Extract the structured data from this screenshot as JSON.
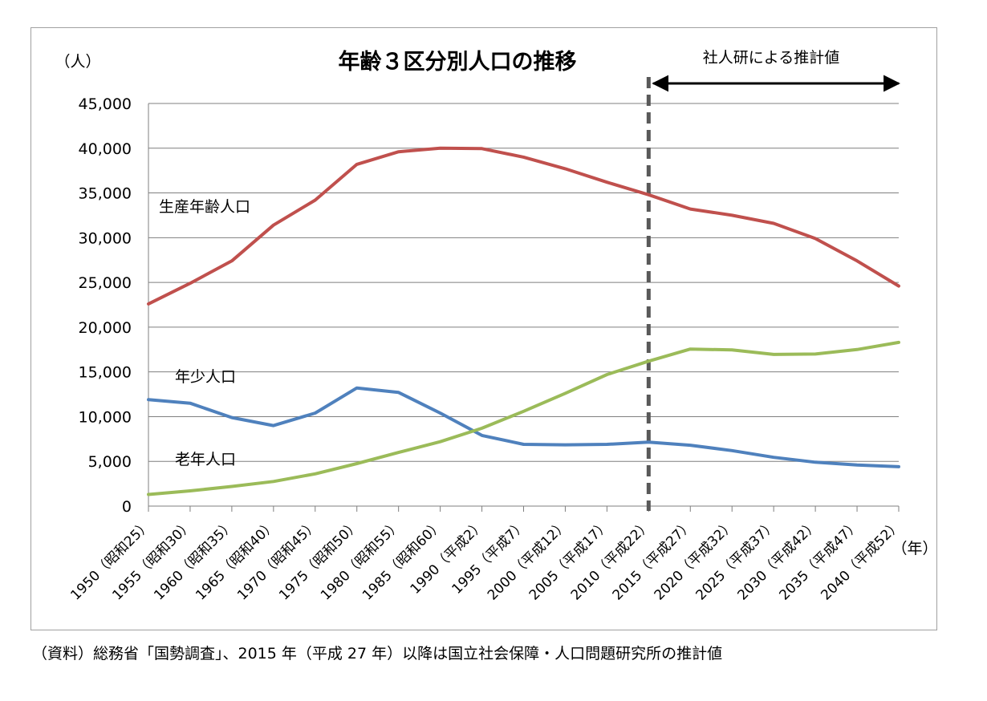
{
  "chart_data": {
    "type": "line",
    "title": "年齢３区分別人口の推移",
    "ylabel": "（人）",
    "xlabel": "（年）",
    "ylim": [
      0,
      45000
    ],
    "yticks": [
      0,
      5000,
      10000,
      15000,
      20000,
      25000,
      30000,
      35000,
      40000,
      45000
    ],
    "ytick_labels": [
      "0",
      "5,000",
      "10,000",
      "15,000",
      "20,000",
      "25,000",
      "30,000",
      "35,000",
      "40,000",
      "45,000"
    ],
    "grid": true,
    "categories": [
      "1950（昭和25）",
      "1955（昭和30）",
      "1960（昭和35）",
      "1965（昭和40）",
      "1970（昭和45）",
      "1975（昭和50）",
      "1980（昭和55）",
      "1985（昭和60）",
      "1990（平成2）",
      "1995（平成7）",
      "2000（平成12）",
      "2005（平成17）",
      "2010（平成22）",
      "2015（平成27）",
      "2020（平成32）",
      "2025（平成37）",
      "2030（平成42）",
      "2035（平成47）",
      "2040（平成52）"
    ],
    "series": [
      {
        "name": "生産年齢人口",
        "color": "#c0504d",
        "values": [
          22600,
          24900,
          27400,
          31400,
          34200,
          38200,
          39600,
          40000,
          39950,
          39000,
          37700,
          36200,
          34800,
          33200,
          32500,
          31600,
          29900,
          27400,
          24600
        ]
      },
      {
        "name": "年少人口",
        "color": "#4f81bd",
        "values": [
          11900,
          11500,
          9900,
          9000,
          10400,
          13200,
          12700,
          10400,
          7900,
          6900,
          6850,
          6900,
          7150,
          6800,
          6200,
          5450,
          4900,
          4600,
          4400
        ]
      },
      {
        "name": "老年人口",
        "color": "#9bbb59",
        "values": [
          1300,
          1700,
          2200,
          2750,
          3600,
          4750,
          6000,
          7200,
          8700,
          10600,
          12600,
          14700,
          16200,
          17550,
          17450,
          16950,
          17000,
          17500,
          18300
        ]
      }
    ],
    "projection": {
      "label": "社人研による推計値",
      "start_category": "2010（平成22）",
      "line_color": "#595959"
    }
  },
  "source_note": "（資料）総務省「国勢調査」、2015 年（平成 27 年）以降は国立社会保障・人口問題研究所の推計値"
}
